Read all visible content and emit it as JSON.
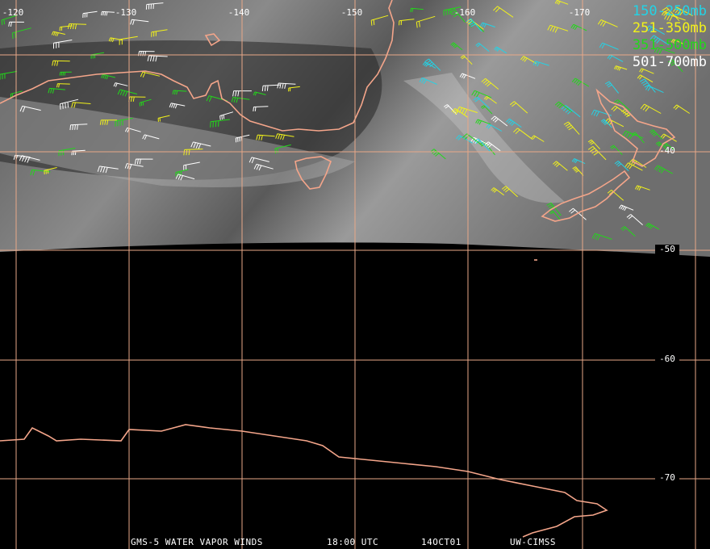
{
  "map": {
    "longitude_labels": [
      "-120",
      "-130",
      "-140",
      "-150",
      "-160",
      "-170"
    ],
    "latitude_labels": [
      "-40",
      "-50",
      "-60",
      "-70"
    ],
    "legend": [
      {
        "label": "150-250mb",
        "color": "#22d3e6"
      },
      {
        "label": "251-350mb",
        "color": "#f2f21a"
      },
      {
        "label": "351-500mb",
        "color": "#22d81a"
      },
      {
        "label": "501-700mb",
        "color": "#ffffff"
      }
    ],
    "footer": [
      "GMS-5 WATER VAPOR WINDS",
      "18:00 UTC",
      "14OCT01",
      "UW-CIMSS"
    ]
  }
}
